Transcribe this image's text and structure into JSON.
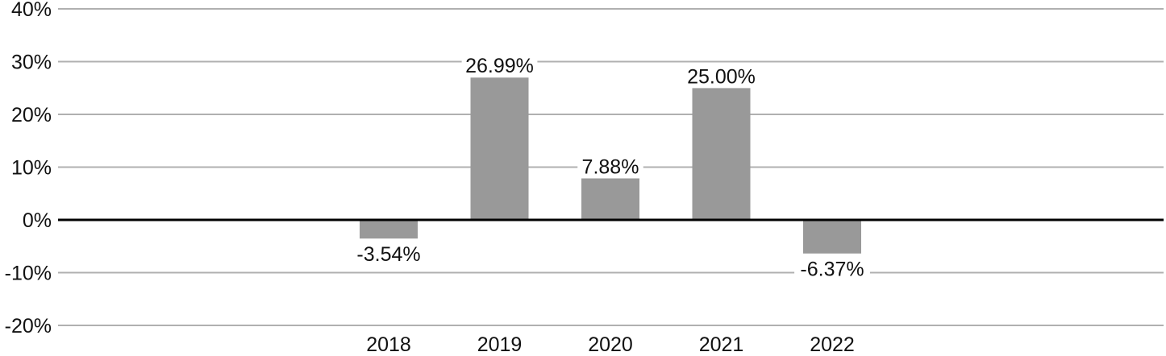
{
  "chart_data": {
    "type": "bar",
    "categories": [
      "2018",
      "2019",
      "2020",
      "2021",
      "2022"
    ],
    "values": [
      -3.54,
      26.99,
      7.88,
      25.0,
      -6.37
    ],
    "data_labels": [
      "-3.54%",
      "26.99%",
      "7.88%",
      "25.00%",
      "-6.37%"
    ],
    "title": "",
    "xlabel": "",
    "ylabel": "",
    "ylim": [
      -20,
      40
    ],
    "yticks": [
      40,
      30,
      20,
      10,
      0,
      -10,
      -20
    ],
    "ytick_labels": [
      "40%",
      "30%",
      "20%",
      "10%",
      "0%",
      "-10%",
      "-20%"
    ],
    "grid": true,
    "legend": "none",
    "colors": {
      "bar": "#999999",
      "grid": "#b0b0b0",
      "zero_line": "#000000",
      "text": "#111111"
    }
  }
}
